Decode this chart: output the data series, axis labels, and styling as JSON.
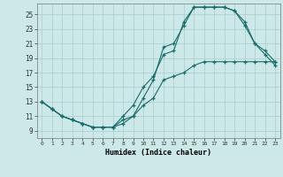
{
  "xlabel": "Humidex (Indice chaleur)",
  "bg_color": "#cce8e8",
  "grid_color": "#aacccc",
  "line_color": "#1a6b6b",
  "xlim": [
    -0.5,
    23.5
  ],
  "ylim": [
    8.0,
    26.5
  ],
  "xticks": [
    0,
    1,
    2,
    3,
    4,
    5,
    6,
    7,
    8,
    9,
    10,
    11,
    12,
    13,
    14,
    15,
    16,
    17,
    18,
    19,
    20,
    21,
    22,
    23
  ],
  "yticks": [
    9,
    11,
    13,
    15,
    17,
    19,
    21,
    23,
    25
  ],
  "curve1_x": [
    0,
    1,
    2,
    3,
    4,
    5,
    6,
    7,
    8,
    9,
    10,
    11,
    12,
    13,
    14,
    15,
    16,
    17,
    18,
    19,
    20,
    21,
    22,
    23
  ],
  "curve1_y": [
    13,
    12,
    11,
    10.5,
    10,
    9.5,
    9.5,
    9.5,
    11,
    12.5,
    15,
    16.5,
    19.5,
    20,
    24,
    26,
    26,
    26,
    26,
    25.5,
    24,
    21,
    20,
    18.5
  ],
  "curve2_x": [
    0,
    1,
    2,
    3,
    4,
    5,
    6,
    7,
    8,
    9,
    10,
    11,
    12,
    13,
    14,
    15,
    16,
    17,
    18,
    19,
    20,
    21,
    22,
    23
  ],
  "curve2_y": [
    13,
    12,
    11,
    10.5,
    10,
    9.5,
    9.5,
    9.5,
    10.5,
    11,
    13.5,
    16,
    20.5,
    21,
    23.5,
    26,
    26,
    26,
    26,
    25.5,
    23.5,
    21,
    19.5,
    18
  ],
  "curve3_x": [
    0,
    1,
    2,
    3,
    4,
    5,
    6,
    7,
    8,
    9,
    10,
    11,
    12,
    13,
    14,
    15,
    16,
    17,
    18,
    19,
    20,
    21,
    22,
    23
  ],
  "curve3_y": [
    13,
    12,
    11,
    10.5,
    10,
    9.5,
    9.5,
    9.5,
    10,
    11,
    12.5,
    13.5,
    16,
    16.5,
    17,
    18,
    18.5,
    18.5,
    18.5,
    18.5,
    18.5,
    18.5,
    18.5,
    18.5
  ]
}
